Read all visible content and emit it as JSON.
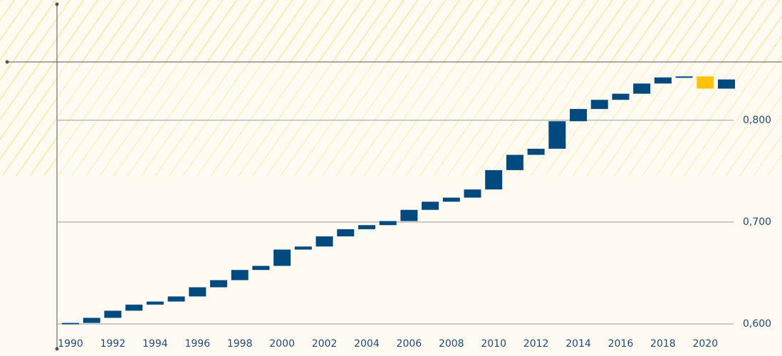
{
  "chart_data": {
    "type": "waterfall",
    "x": [
      1990,
      1991,
      1992,
      1993,
      1994,
      1995,
      1996,
      1997,
      1998,
      1999,
      2000,
      2001,
      2002,
      2003,
      2004,
      2005,
      2006,
      2007,
      2008,
      2009,
      2010,
      2011,
      2012,
      2013,
      2014,
      2015,
      2016,
      2017,
      2018,
      2019,
      2020,
      2021
    ],
    "values": [
      0.601,
      0.606,
      0.613,
      0.619,
      0.622,
      0.627,
      0.636,
      0.643,
      0.653,
      0.657,
      0.673,
      0.676,
      0.686,
      0.693,
      0.697,
      0.701,
      0.712,
      0.72,
      0.724,
      0.732,
      0.751,
      0.766,
      0.772,
      0.799,
      0.811,
      0.82,
      0.826,
      0.836,
      0.842,
      0.843,
      0.831,
      0.84
    ],
    "increase_color": "#004a7f",
    "decrease_color": "#ffc20e",
    "xlim": [
      1990,
      2021
    ],
    "xticks": [
      1990,
      1992,
      1994,
      1996,
      1998,
      2000,
      2002,
      2004,
      2006,
      2008,
      2010,
      2012,
      2014,
      2016,
      2018,
      2020
    ],
    "ylim": [
      0.6,
      0.918
    ],
    "yticks": [
      {
        "value": 0.6,
        "label": "0,600"
      },
      {
        "value": 0.7,
        "label": "0,700"
      },
      {
        "value": 0.8,
        "label": "0,800"
      }
    ],
    "grid": true
  }
}
